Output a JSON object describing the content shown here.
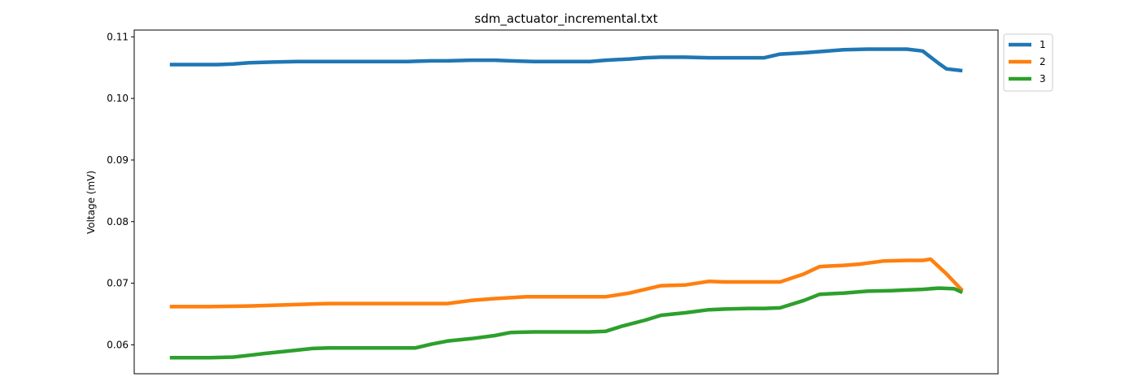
{
  "chart_data": {
    "type": "line",
    "title": "sdm_actuator_incremental.txt",
    "xlabel": "",
    "ylabel": "Voltage (mV)",
    "ylim": [
      0.0553,
      0.1111
    ],
    "yticks": [
      0.06,
      0.07,
      0.08,
      0.09,
      0.1,
      0.11
    ],
    "ytick_labels": [
      "0.06",
      "0.07",
      "0.08",
      "0.09",
      "0.10",
      "0.11"
    ],
    "xlim": [
      -0.045,
      1.045
    ],
    "x_ticks_shown": false,
    "grid": false,
    "legend_position": "outside-top-right",
    "series": [
      {
        "name": "1",
        "color": "#1f77b4",
        "x": [
          0.0,
          0.03,
          0.06,
          0.08,
          0.1,
          0.13,
          0.16,
          0.2,
          0.25,
          0.3,
          0.33,
          0.35,
          0.38,
          0.41,
          0.43,
          0.46,
          0.5,
          0.53,
          0.55,
          0.58,
          0.6,
          0.62,
          0.65,
          0.68,
          0.7,
          0.73,
          0.75,
          0.77,
          0.8,
          0.82,
          0.85,
          0.88,
          0.91,
          0.93,
          0.95,
          0.97,
          0.98,
          1.0
        ],
        "values": [
          0.1055,
          0.1055,
          0.1055,
          0.1056,
          0.1058,
          0.1059,
          0.106,
          0.106,
          0.106,
          0.106,
          0.1061,
          0.1061,
          0.1062,
          0.1062,
          0.1061,
          0.106,
          0.106,
          0.106,
          0.1062,
          0.1064,
          0.1066,
          0.1067,
          0.1067,
          0.1066,
          0.1066,
          0.1066,
          0.1066,
          0.1072,
          0.1074,
          0.1076,
          0.1079,
          0.108,
          0.108,
          0.108,
          0.1077,
          0.1057,
          0.1048,
          0.1045
        ]
      },
      {
        "name": "2",
        "color": "#ff7f0e",
        "x": [
          0.0,
          0.05,
          0.1,
          0.15,
          0.2,
          0.25,
          0.3,
          0.35,
          0.38,
          0.41,
          0.45,
          0.5,
          0.53,
          0.55,
          0.58,
          0.6,
          0.62,
          0.65,
          0.68,
          0.7,
          0.73,
          0.75,
          0.77,
          0.8,
          0.82,
          0.85,
          0.87,
          0.9,
          0.93,
          0.95,
          0.96,
          0.98,
          1.0
        ],
        "values": [
          0.0662,
          0.0662,
          0.0663,
          0.0665,
          0.0667,
          0.0667,
          0.0667,
          0.0667,
          0.0672,
          0.0675,
          0.0678,
          0.0678,
          0.0678,
          0.0678,
          0.0684,
          0.069,
          0.0696,
          0.0697,
          0.0703,
          0.0702,
          0.0702,
          0.0702,
          0.0702,
          0.0715,
          0.0727,
          0.0729,
          0.0731,
          0.0736,
          0.0737,
          0.0737,
          0.0739,
          0.0715,
          0.0688
        ]
      },
      {
        "name": "3",
        "color": "#2ca02c",
        "x": [
          0.0,
          0.05,
          0.08,
          0.1,
          0.12,
          0.15,
          0.18,
          0.2,
          0.25,
          0.3,
          0.31,
          0.33,
          0.35,
          0.38,
          0.41,
          0.43,
          0.46,
          0.5,
          0.53,
          0.55,
          0.57,
          0.6,
          0.62,
          0.65,
          0.68,
          0.7,
          0.73,
          0.75,
          0.77,
          0.8,
          0.82,
          0.85,
          0.88,
          0.91,
          0.93,
          0.95,
          0.97,
          0.99,
          1.0
        ],
        "values": [
          0.0579,
          0.0579,
          0.058,
          0.0583,
          0.0586,
          0.059,
          0.0594,
          0.0595,
          0.0595,
          0.0595,
          0.0595,
          0.0601,
          0.0606,
          0.061,
          0.0615,
          0.062,
          0.0621,
          0.0621,
          0.0621,
          0.0622,
          0.063,
          0.064,
          0.0648,
          0.0652,
          0.0657,
          0.0658,
          0.0659,
          0.0659,
          0.066,
          0.0672,
          0.0682,
          0.0684,
          0.0687,
          0.0688,
          0.0689,
          0.069,
          0.0692,
          0.0691,
          0.0685
        ]
      }
    ]
  }
}
